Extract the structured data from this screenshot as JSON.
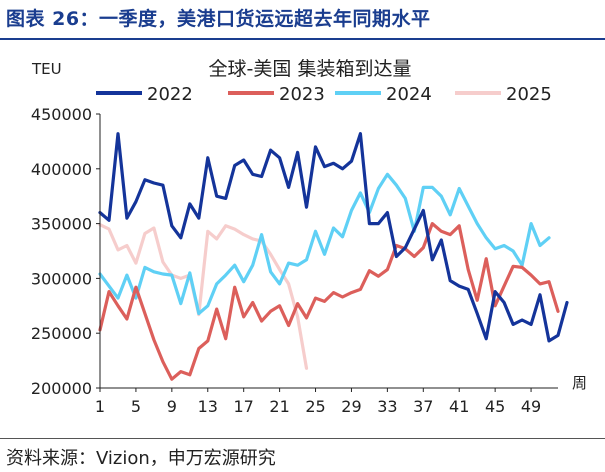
{
  "figure": {
    "title": "图表 26：一季度，美港口货运远超去年同期水平",
    "source": "资料来源：Vizion，申万宏源研究"
  },
  "chart_data": {
    "type": "line",
    "title": "全球-美国 集装箱到达量",
    "ylabel": "TEU",
    "xlabel": "周",
    "ylim": [
      200000,
      450000
    ],
    "xlim": [
      1,
      52
    ],
    "yticks": [
      200000,
      250000,
      300000,
      350000,
      400000,
      450000
    ],
    "ytick_labels": [
      "200000",
      "250000",
      "300000",
      "350000",
      "400000",
      "450000"
    ],
    "xticks": [
      1,
      5,
      9,
      13,
      17,
      21,
      25,
      29,
      33,
      37,
      41,
      45,
      49
    ],
    "xtick_labels": [
      "1",
      "5",
      "9",
      "13",
      "17",
      "21",
      "25",
      "29",
      "33",
      "37",
      "41",
      "45",
      "49"
    ],
    "grid": false,
    "legend": "top",
    "series": [
      {
        "name": "2022",
        "color": "#14349a",
        "values": [
          360000,
          353000,
          432000,
          355000,
          370000,
          390000,
          387000,
          385000,
          348000,
          337000,
          368000,
          355000,
          410000,
          375000,
          373000,
          403000,
          408000,
          395000,
          393000,
          417000,
          410000,
          383000,
          415000,
          365000,
          420000,
          402000,
          405000,
          400000,
          407000,
          432000,
          350000,
          350000,
          360000,
          320000,
          328000,
          345000,
          362000,
          317000,
          335000,
          298000,
          293000,
          290000,
          268000,
          245000,
          288000,
          278000,
          258000,
          262000,
          258000,
          285000,
          243000,
          248000,
          278000
        ]
      },
      {
        "name": "2023",
        "color": "#dc5f5b",
        "values": [
          253000,
          288000,
          275000,
          263000,
          292000,
          268000,
          244000,
          224000,
          208000,
          215000,
          212000,
          236000,
          243000,
          272000,
          245000,
          292000,
          265000,
          278000,
          261000,
          270000,
          275000,
          257000,
          277000,
          264000,
          282000,
          279000,
          287000,
          283000,
          287000,
          290000,
          307000,
          302000,
          308000,
          330000,
          327000,
          320000,
          328000,
          350000,
          343000,
          340000,
          348000,
          308000,
          280000,
          318000,
          275000,
          293000,
          311000,
          310000,
          303000,
          295000,
          297000,
          270000
        ]
      },
      {
        "name": "2024",
        "color": "#5fd0f5",
        "values": [
          304000,
          293000,
          282000,
          303000,
          282000,
          310000,
          306000,
          304000,
          303000,
          277000,
          305000,
          268000,
          275000,
          295000,
          303000,
          312000,
          297000,
          312000,
          340000,
          306000,
          295000,
          314000,
          312000,
          317000,
          343000,
          322000,
          346000,
          338000,
          362000,
          378000,
          360000,
          382000,
          395000,
          385000,
          373000,
          343000,
          383000,
          383000,
          375000,
          358000,
          382000,
          366000,
          350000,
          337000,
          327000,
          330000,
          325000,
          312000,
          350000,
          330000,
          337000
        ]
      },
      {
        "name": "2025",
        "color": "#f6cdcc",
        "values": [
          349000,
          345000,
          326000,
          330000,
          314000,
          341000,
          346000,
          315000,
          303000,
          300000,
          303000,
          267000,
          343000,
          336000,
          348000,
          345000,
          340000,
          336000,
          334000,
          322000,
          308000,
          295000,
          265000,
          218000
        ]
      }
    ]
  }
}
